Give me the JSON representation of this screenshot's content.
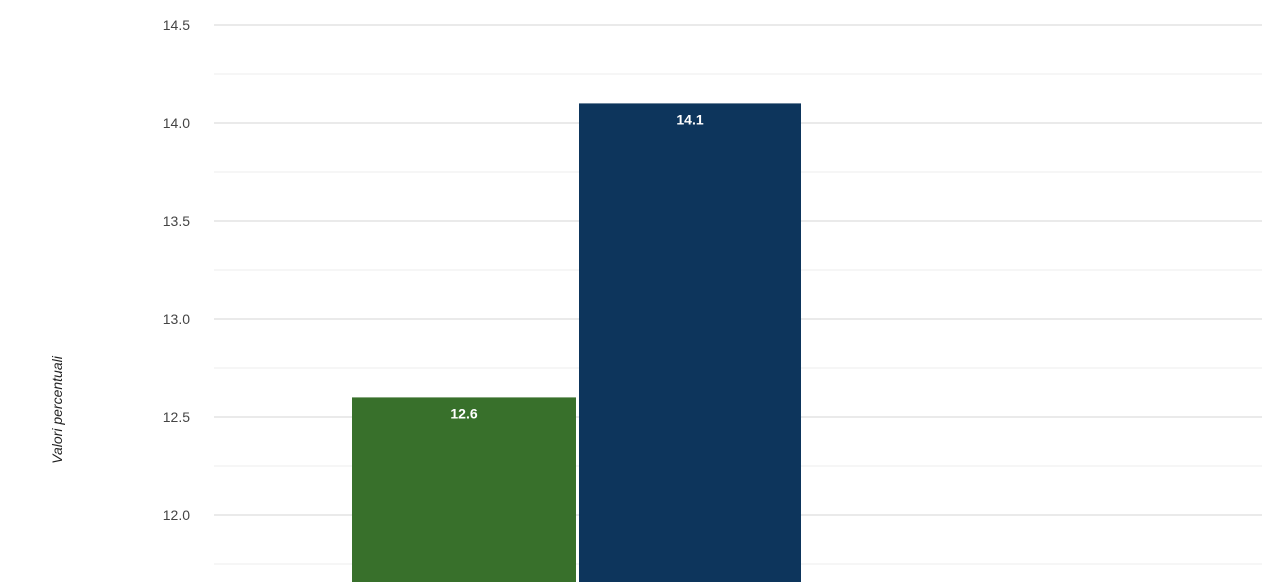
{
  "chart_data": {
    "type": "bar",
    "title": "",
    "xlabel": "",
    "ylabel": "Valori percentuali",
    "ylim": [
      11.65,
      14.5
    ],
    "yticks": [
      12.0,
      12.5,
      13.0,
      13.5,
      14.0,
      14.5
    ],
    "ytick_labels": [
      "12.0",
      "12.5",
      "13.0",
      "13.5",
      "14.0",
      "14.5"
    ],
    "minor_gridlines": true,
    "grid": true,
    "legend": "none",
    "series": [
      {
        "value": 12.6,
        "label": "12.6",
        "color": "#38702b"
      },
      {
        "value": 14.1,
        "label": "14.1",
        "color": "#0d355c"
      }
    ],
    "colors": {
      "gridline": "#d4d4d4",
      "minor_gridline": "#ececec",
      "tick_text": "#444444",
      "data_label": "#ffffff"
    }
  }
}
